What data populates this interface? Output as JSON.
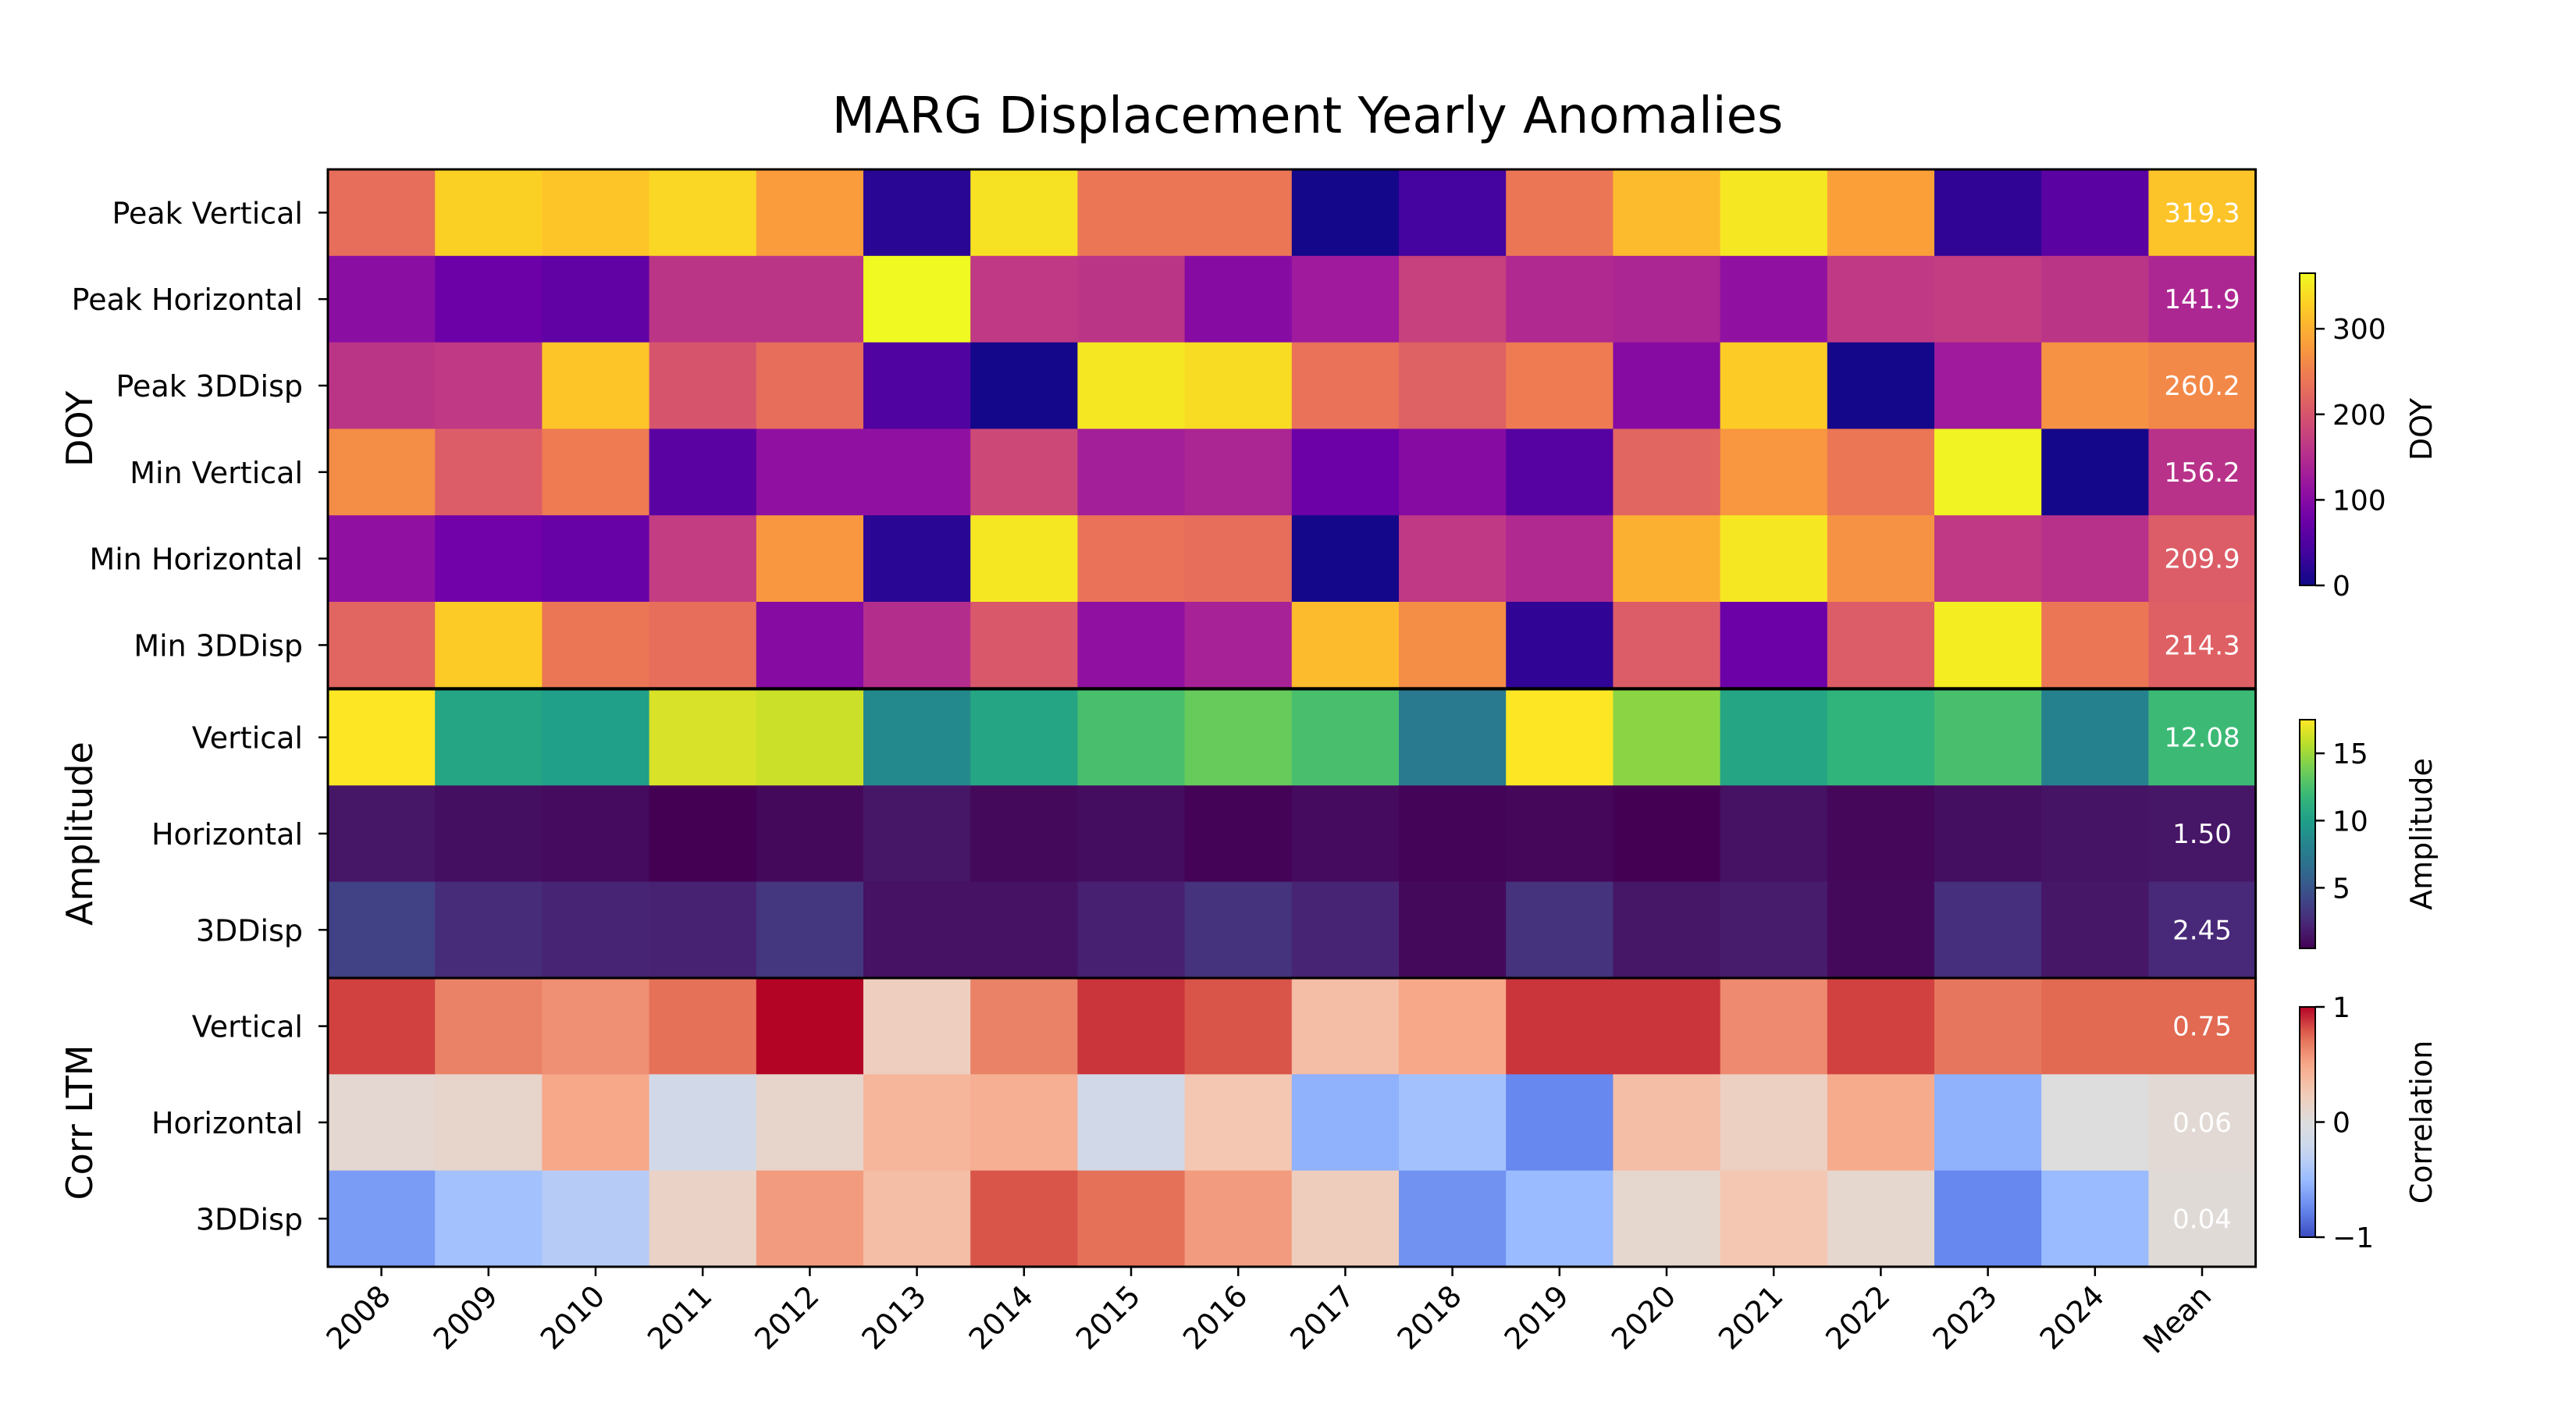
{
  "chart_data": {
    "type": "heatmap",
    "title": "MARG Displacement Yearly Anomalies",
    "columns": [
      "2008",
      "2009",
      "2010",
      "2011",
      "2012",
      "2013",
      "2014",
      "2015",
      "2016",
      "2017",
      "2018",
      "2019",
      "2020",
      "2021",
      "2022",
      "2023",
      "2024",
      "Mean"
    ],
    "panels": [
      {
        "name": "DOY",
        "colormap": "plasma",
        "range": [
          0,
          365
        ],
        "colorbar_label": "DOY",
        "colorbar_ticks": [
          {
            "value": 0,
            "label": "0"
          },
          {
            "value": 100,
            "label": "100"
          },
          {
            "value": 200,
            "label": "200"
          },
          {
            "value": 300,
            "label": "300"
          }
        ],
        "rows": [
          {
            "label": "Peak Vertical",
            "values": [
              230,
              330,
              320,
              335,
              280,
              20,
              345,
              240,
              240,
              5,
              40,
              240,
              310,
              350,
              285,
              25,
              60,
              319
            ],
            "mean_text": "319.3"
          },
          {
            "label": "Peak Horizontal",
            "values": [
              105,
              75,
              65,
              160,
              160,
              365,
              165,
              160,
              100,
              125,
              175,
              145,
              140,
              110,
              165,
              170,
              160,
              142
            ],
            "mean_text": "141.9"
          },
          {
            "label": "Peak 3DDisp",
            "values": [
              160,
              165,
              320,
              200,
              230,
              50,
              5,
              350,
              340,
              235,
              215,
              245,
              100,
              325,
              5,
              125,
              270,
              260
            ],
            "mean_text": "260.2"
          },
          {
            "label": "Min Vertical",
            "values": [
              265,
              210,
              245,
              60,
              110,
              110,
              185,
              130,
              140,
              75,
              100,
              55,
              220,
              275,
              240,
              360,
              5,
              156
            ],
            "mean_text": "156.2"
          },
          {
            "label": "Min Horizontal",
            "values": [
              110,
              80,
              70,
              170,
              275,
              20,
              350,
              235,
              230,
              5,
              165,
              145,
              300,
              350,
              270,
              165,
              155,
              210
            ],
            "mean_text": "209.9"
          },
          {
            "label": "Min 3DDisp",
            "values": [
              220,
              325,
              240,
              230,
              100,
              150,
              205,
              110,
              135,
              310,
              265,
              25,
              210,
              75,
              210,
              355,
              240,
              214
            ],
            "mean_text": "214.3"
          }
        ]
      },
      {
        "name": "Amplitude",
        "colormap": "viridis",
        "range": [
          0.5,
          17.5
        ],
        "colorbar_label": "Amplitude",
        "colorbar_ticks": [
          {
            "value": 5,
            "label": "5"
          },
          {
            "value": 10,
            "label": "10"
          },
          {
            "value": 15,
            "label": "15"
          }
        ],
        "rows": [
          {
            "label": "Vertical",
            "values": [
              17.5,
              10.5,
              10.0,
              16.5,
              16.2,
              8.5,
              10.5,
              12.5,
              13.5,
              12.5,
              7.5,
              17.5,
              14.5,
              10.5,
              11.5,
              12.5,
              8.0,
              12.08
            ],
            "mean_text": "12.08"
          },
          {
            "label": "Horizontal",
            "values": [
              1.5,
              1.2,
              1.0,
              0.5,
              0.9,
              1.5,
              0.9,
              1.1,
              0.6,
              1.0,
              0.7,
              0.8,
              0.5,
              1.3,
              0.8,
              1.2,
              1.4,
              1.5
            ],
            "mean_text": "1.50"
          },
          {
            "label": "3DDisp",
            "values": [
              3.8,
              2.6,
              2.2,
              2.1,
              3.2,
              1.3,
              1.3,
              2.0,
              3.0,
              2.2,
              0.9,
              3.0,
              1.5,
              1.8,
              0.9,
              2.8,
              1.5,
              2.45
            ],
            "mean_text": "2.45"
          }
        ]
      },
      {
        "name": "Corr LTM",
        "colormap": "coolwarm",
        "range": [
          -1,
          1
        ],
        "colorbar_label": "Correlation",
        "colorbar_ticks": [
          {
            "value": -1,
            "label": "−1"
          },
          {
            "value": 0,
            "label": "0"
          },
          {
            "value": 1,
            "label": "1"
          }
        ],
        "rows": [
          {
            "label": "Vertical",
            "values": [
              0.85,
              0.65,
              0.6,
              0.72,
              1.0,
              0.2,
              0.65,
              0.88,
              0.8,
              0.35,
              0.5,
              0.88,
              0.88,
              0.62,
              0.85,
              0.7,
              0.75,
              0.75
            ],
            "mean_text": "0.75"
          },
          {
            "label": "Horizontal",
            "values": [
              0.08,
              0.12,
              0.5,
              -0.15,
              0.12,
              0.4,
              0.45,
              -0.15,
              0.28,
              -0.55,
              -0.45,
              -0.75,
              0.35,
              0.18,
              0.48,
              -0.55,
              0.0,
              0.06
            ],
            "mean_text": "0.06"
          },
          {
            "label": "3DDisp",
            "values": [
              -0.65,
              -0.45,
              -0.35,
              0.15,
              0.55,
              0.35,
              0.8,
              0.72,
              0.55,
              0.22,
              -0.7,
              -0.5,
              0.1,
              0.28,
              0.1,
              -0.75,
              -0.5,
              0.04
            ],
            "mean_text": "0.04"
          }
        ]
      }
    ]
  }
}
